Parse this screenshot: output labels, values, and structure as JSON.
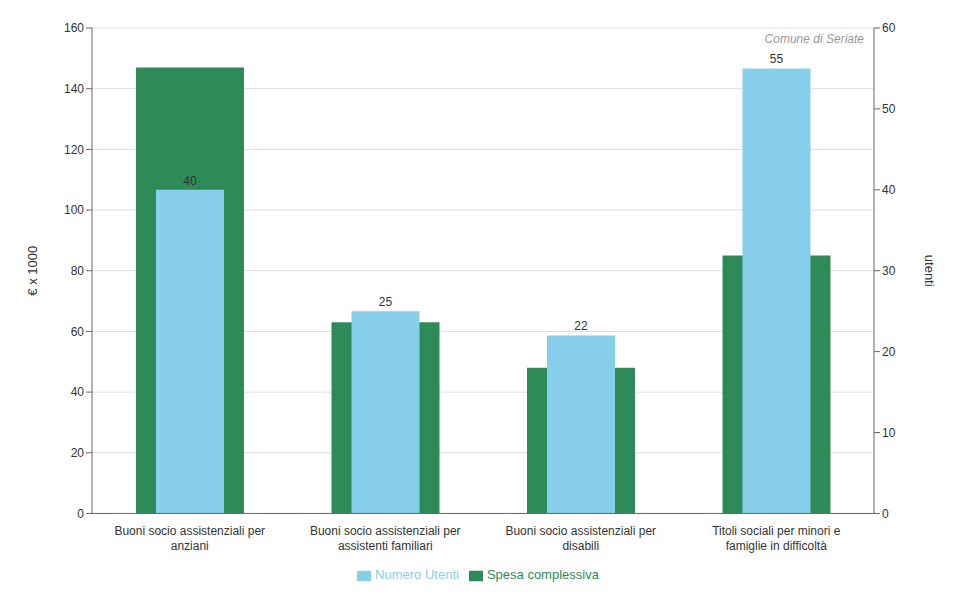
{
  "chart_data": {
    "type": "bar",
    "categories": [
      "Buoni socio assistenziali per\nanziani",
      "Buoni socio assistenziali per\nassistenti familiari",
      "Buoni socio assistenziali per\ndisabili",
      "Titoli sociali per minori e\nfamiglie in difficoltà"
    ],
    "series": [
      {
        "name": "Spesa complessiva",
        "color": "#2e8b57",
        "values": [
          147.0,
          63.0,
          48.0,
          85.0
        ]
      },
      {
        "name": "Numero Utenti",
        "color": "#87ceeb",
        "values": [
          40,
          25,
          22,
          55
        ],
        "axis": "y2",
        "data_labels": true
      }
    ],
    "ylabel": "€ x 1000",
    "y2label": "utenti",
    "ylim": [
      0,
      160
    ],
    "yticks": [
      0,
      20,
      40,
      60,
      80,
      100,
      120,
      140,
      160
    ],
    "y2lim": [
      0,
      60
    ],
    "y2ticks": [
      0,
      10,
      20,
      30,
      40,
      50,
      60
    ],
    "grid": true,
    "legend": "bottom",
    "annotations": [
      "Comune di Seriate"
    ]
  }
}
